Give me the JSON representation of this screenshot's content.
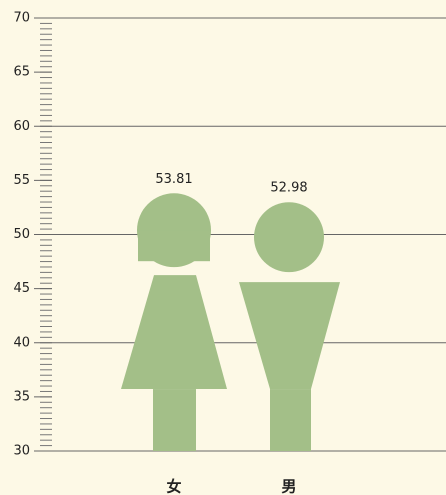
{
  "chart_data": {
    "type": "pictogram",
    "categories": [
      "女",
      "男"
    ],
    "values": [
      53.81,
      52.98
    ],
    "color": "#a3bf88",
    "ylim": [
      30,
      70
    ],
    "yticks": [
      30,
      35,
      40,
      45,
      50,
      55,
      60,
      65,
      70
    ],
    "yminor_step": 0.5,
    "grid": true
  }
}
